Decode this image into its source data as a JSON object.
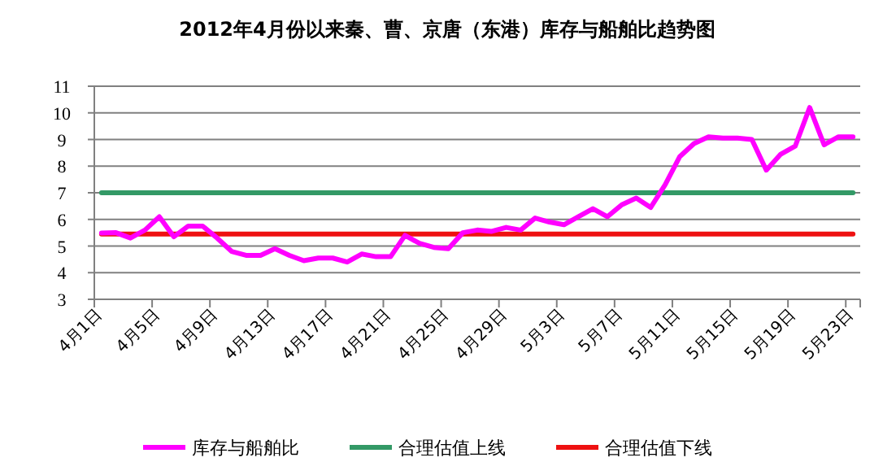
{
  "chart_data": {
    "type": "line",
    "title": "2012年4月份以来秦、曹、京唐（东港）库存与船舶比趋势图",
    "categories": [
      "4月1日",
      null,
      null,
      null,
      "4月5日",
      null,
      null,
      null,
      "4月9日",
      null,
      null,
      null,
      "4月13日",
      null,
      null,
      null,
      "4月17日",
      null,
      null,
      null,
      "4月21日",
      null,
      null,
      null,
      "4月25日",
      null,
      null,
      null,
      "4月29日",
      null,
      null,
      null,
      "5月3日",
      null,
      null,
      null,
      "5月7日",
      null,
      null,
      null,
      "5月11日",
      null,
      null,
      null,
      "5月15日",
      null,
      null,
      null,
      "5月19日",
      null,
      null,
      null,
      "5月23日"
    ],
    "series": [
      {
        "name": "库存与船舶比",
        "color": "#ff00ff",
        "values": [
          5.49,
          5.5,
          5.3,
          5.6,
          6.1,
          5.35,
          5.75,
          5.75,
          5.3,
          4.8,
          4.65,
          4.65,
          4.9,
          4.65,
          4.45,
          4.55,
          4.55,
          4.4,
          4.7,
          4.6,
          4.6,
          5.4,
          5.1,
          4.95,
          4.9,
          5.5,
          5.6,
          5.55,
          5.7,
          5.6,
          6.05,
          5.9,
          5.8,
          6.1,
          6.4,
          6.1,
          6.55,
          6.8,
          6.45,
          7.3,
          8.35,
          8.85,
          9.1,
          9.05,
          9.05,
          9.0,
          7.85,
          8.45,
          8.75,
          10.2,
          8.8,
          9.1,
          9.1
        ]
      },
      {
        "name": "合理估值上线",
        "color": "#339966",
        "values": [
          7,
          7,
          7,
          7,
          7,
          7,
          7,
          7,
          7,
          7,
          7,
          7,
          7,
          7,
          7,
          7,
          7,
          7,
          7,
          7,
          7,
          7,
          7,
          7,
          7,
          7,
          7,
          7,
          7,
          7,
          7,
          7,
          7,
          7,
          7,
          7,
          7,
          7,
          7,
          7,
          7,
          7,
          7,
          7,
          7,
          7,
          7,
          7,
          7,
          7,
          7,
          7,
          7
        ]
      },
      {
        "name": "合理估值下线",
        "color": "#ee1111",
        "values": [
          5.45,
          5.45,
          5.45,
          5.45,
          5.45,
          5.45,
          5.45,
          5.45,
          5.45,
          5.45,
          5.45,
          5.45,
          5.45,
          5.45,
          5.45,
          5.45,
          5.45,
          5.45,
          5.45,
          5.45,
          5.45,
          5.45,
          5.45,
          5.45,
          5.45,
          5.45,
          5.45,
          5.45,
          5.45,
          5.45,
          5.45,
          5.45,
          5.45,
          5.45,
          5.45,
          5.45,
          5.45,
          5.45,
          5.45,
          5.45,
          5.45,
          5.45,
          5.45,
          5.45,
          5.45,
          5.45,
          5.45,
          5.45,
          5.45,
          5.45,
          5.45,
          5.45,
          5.45
        ]
      }
    ],
    "ylim": [
      3,
      11
    ],
    "yticks": [
      3,
      4,
      5,
      6,
      7,
      8,
      9,
      10,
      11
    ],
    "grid": "y",
    "legend": "bottom",
    "marker": "none",
    "line_style": "solid"
  }
}
